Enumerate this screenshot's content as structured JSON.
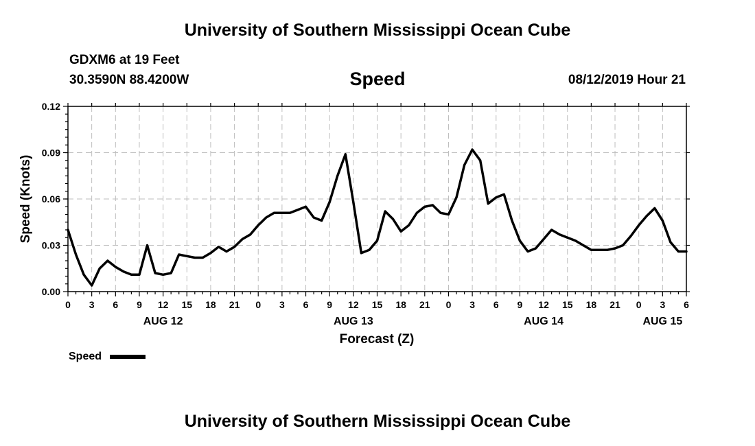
{
  "header": {
    "title": "University of Southern Mississippi Ocean Cube",
    "station": "GDXM6 at 19 Feet",
    "coords": "30.3590N 88.4200W",
    "datetime": "08/12/2019 Hour 21"
  },
  "footer": {
    "title": "University of Southern Mississippi Ocean Cube"
  },
  "chart_data": {
    "type": "line",
    "title": "Speed",
    "xlabel": "Forecast (Z)",
    "ylabel": "Speed (Knots)",
    "xlim": [
      0,
      78
    ],
    "ylim": [
      0,
      0.12
    ],
    "yticks": [
      0,
      0.03,
      0.06,
      0.09,
      0.12
    ],
    "ytick_labels": [
      "0.00",
      "0.03",
      "0.06",
      "0.09",
      "0.12"
    ],
    "xticks": [
      0,
      3,
      6,
      9,
      12,
      15,
      18,
      21,
      24,
      27,
      30,
      33,
      36,
      39,
      42,
      45,
      48,
      51,
      54,
      57,
      60,
      63,
      66,
      69,
      72,
      75,
      78
    ],
    "xtick_labels": [
      "0",
      "3",
      "6",
      "9",
      "12",
      "15",
      "18",
      "21",
      "0",
      "3",
      "6",
      "9",
      "12",
      "15",
      "18",
      "21",
      "0",
      "3",
      "6",
      "9",
      "12",
      "15",
      "18",
      "21",
      "0",
      "3",
      "6"
    ],
    "date_labels": [
      {
        "x": 12,
        "label": "AUG 12"
      },
      {
        "x": 36,
        "label": "AUG 13"
      },
      {
        "x": 60,
        "label": "AUG 14"
      },
      {
        "x": 75,
        "label": "AUG 15"
      }
    ],
    "grid": true,
    "legend": {
      "position": "bottom-left",
      "entries": [
        "Speed"
      ]
    },
    "series": [
      {
        "name": "Speed",
        "x": [
          0,
          1,
          2,
          3,
          4,
          5,
          6,
          7,
          8,
          9,
          10,
          11,
          12,
          13,
          14,
          15,
          16,
          17,
          18,
          19,
          20,
          21,
          22,
          23,
          24,
          25,
          26,
          27,
          28,
          29,
          30,
          31,
          32,
          33,
          34,
          35,
          36,
          37,
          38,
          39,
          40,
          41,
          42,
          43,
          44,
          45,
          46,
          47,
          48,
          49,
          50,
          51,
          52,
          53,
          54,
          55,
          56,
          57,
          58,
          59,
          60,
          61,
          62,
          63,
          64,
          65,
          66,
          67,
          68,
          69,
          70,
          71,
          72,
          73,
          74,
          75,
          76,
          77,
          78
        ],
        "values": [
          0.04,
          0.024,
          0.011,
          0.004,
          0.015,
          0.02,
          0.016,
          0.013,
          0.011,
          0.011,
          0.03,
          0.012,
          0.011,
          0.012,
          0.024,
          0.023,
          0.022,
          0.022,
          0.025,
          0.029,
          0.026,
          0.029,
          0.034,
          0.037,
          0.043,
          0.048,
          0.051,
          0.051,
          0.051,
          0.053,
          0.055,
          0.048,
          0.046,
          0.058,
          0.075,
          0.089,
          0.058,
          0.025,
          0.027,
          0.033,
          0.052,
          0.047,
          0.039,
          0.043,
          0.051,
          0.055,
          0.056,
          0.051,
          0.05,
          0.061,
          0.082,
          0.092,
          0.085,
          0.057,
          0.061,
          0.063,
          0.046,
          0.033,
          0.026,
          0.028,
          0.034,
          0.04,
          0.037,
          0.035,
          0.033,
          0.03,
          0.027,
          0.027,
          0.027,
          0.028,
          0.03,
          0.036,
          0.043,
          0.049,
          0.054,
          0.046,
          0.032,
          0.026,
          0.026
        ]
      }
    ]
  }
}
